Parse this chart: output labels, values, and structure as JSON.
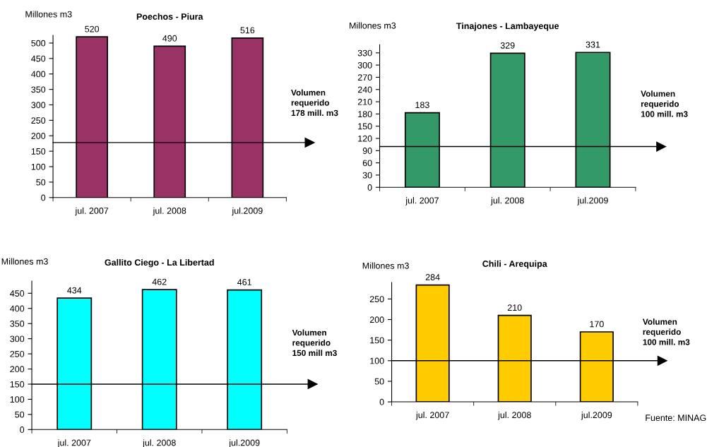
{
  "chart_data": [
    {
      "type": "bar",
      "title": "Poechos - Piura",
      "ylabel": "Millones m3",
      "categories": [
        "jul. 2007",
        "jul. 2008",
        "jul.2009"
      ],
      "values": [
        520,
        490,
        516
      ],
      "color": "#993366",
      "data_labels": true,
      "ylim": [
        0,
        525
      ],
      "yticks": [
        0,
        50,
        100,
        150,
        200,
        250,
        300,
        350,
        400,
        450,
        500
      ],
      "grid": false,
      "ref_lines": [
        {
          "axis": "y",
          "value": 178,
          "label": "Volumen\nrequerido\n178 mill. m3"
        }
      ]
    },
    {
      "type": "bar",
      "title": "Tinajones - Lambayeque",
      "ylabel": "Millones m3",
      "categories": [
        "jul. 2007",
        "jul. 2008",
        "jul.2009"
      ],
      "values": [
        183,
        329,
        331
      ],
      "color": "#339966",
      "data_labels": true,
      "ylim": [
        0,
        350
      ],
      "yticks": [
        0,
        30,
        60,
        90,
        120,
        150,
        180,
        210,
        240,
        270,
        300,
        330
      ],
      "grid": false,
      "ref_lines": [
        {
          "axis": "y",
          "value": 100,
          "label": "Volumen\nrequerido\n100 mill. m3"
        }
      ]
    },
    {
      "type": "bar",
      "title": "Gallito Ciego - La Libertad",
      "ylabel": "Millones m3",
      "categories": [
        "jul. 2007",
        "jul. 2008",
        "jul.2009"
      ],
      "values": [
        434,
        462,
        461
      ],
      "color": "#00ffff",
      "data_labels": true,
      "ylim": [
        0,
        490
      ],
      "yticks": [
        0,
        50,
        100,
        150,
        200,
        250,
        300,
        350,
        400,
        450
      ],
      "grid": false,
      "ref_lines": [
        {
          "axis": "y",
          "value": 150,
          "label": "Volumen\nrequerido\n150 mill m3"
        }
      ]
    },
    {
      "type": "bar",
      "title": "Chili - Arequipa",
      "ylabel": "Millones m3",
      "categories": [
        "jul. 2007",
        "jul. 2008",
        "jul.2009"
      ],
      "values": [
        284,
        210,
        170
      ],
      "color": "#ffcc00",
      "data_labels": true,
      "ylim": [
        0,
        290
      ],
      "yticks": [
        0,
        50,
        100,
        150,
        200,
        250
      ],
      "grid": false,
      "ref_lines": [
        {
          "axis": "y",
          "value": 100,
          "label": "Volumen\nrequerido\n100 mill. m3"
        }
      ],
      "annotations": [
        "Fuente: MINAG"
      ]
    }
  ]
}
